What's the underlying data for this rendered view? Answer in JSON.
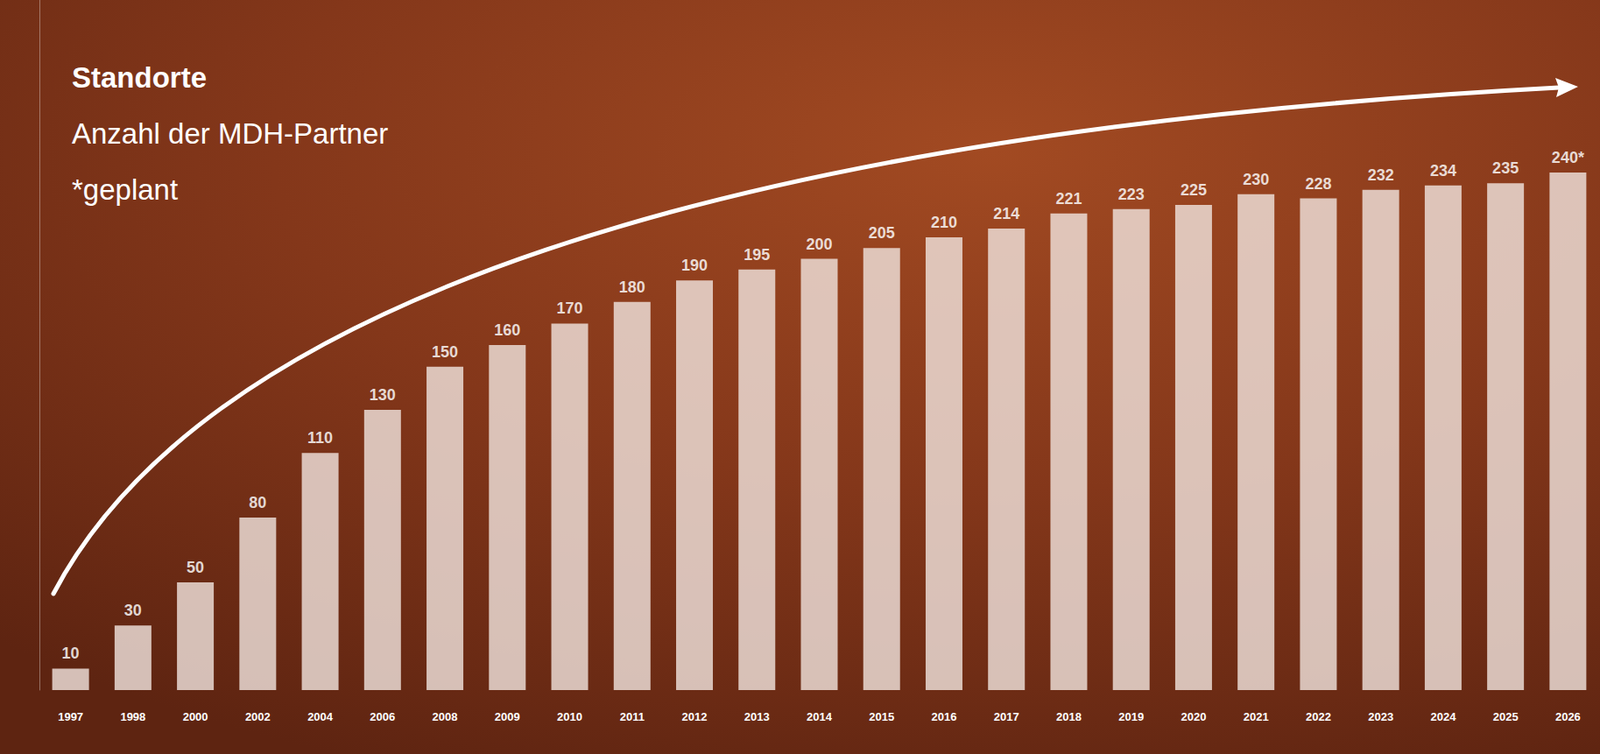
{
  "chart_data": {
    "type": "bar",
    "title": "Standorte",
    "subtitle": "Anzahl der MDH-Partner",
    "annotation": "*geplant",
    "categories": [
      "1997",
      "1998",
      "2000",
      "2002",
      "2004",
      "2006",
      "2008",
      "2009",
      "2010",
      "2011",
      "2012",
      "2013",
      "2014",
      "2015",
      "2016",
      "2017",
      "2018",
      "2019",
      "2020",
      "2021",
      "2022",
      "2023",
      "2024",
      "2025",
      "2026"
    ],
    "values": [
      10,
      30,
      50,
      80,
      110,
      130,
      150,
      160,
      170,
      180,
      190,
      195,
      200,
      205,
      210,
      214,
      221,
      223,
      225,
      230,
      228,
      232,
      234,
      235,
      240
    ],
    "value_labels": [
      "10",
      "30",
      "50",
      "80",
      "110",
      "130",
      "150",
      "160",
      "170",
      "180",
      "190",
      "195",
      "200",
      "205",
      "210",
      "214",
      "221",
      "223",
      "225",
      "230",
      "228",
      "232",
      "234",
      "235",
      "240*"
    ],
    "color": "#efe2dc",
    "ylim": [
      0,
      320
    ],
    "grid": false,
    "data_labels": true,
    "tick_labels": "x"
  }
}
